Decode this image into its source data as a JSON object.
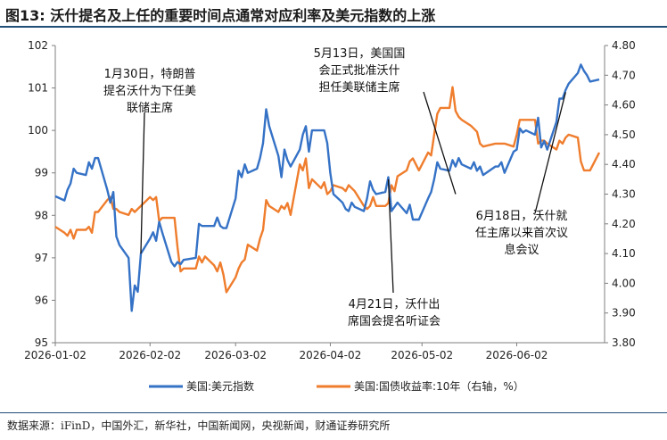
{
  "title": "图13: 沃什提名及上任的重要时间点通常对应利率及美元指数的上涨",
  "source": "数据来源：iFinD，中国外汇，新华社，中国新闻网，央视新闻，财通证券研究所",
  "colors": {
    "series1": "#3572c6",
    "series2": "#ef7d2d",
    "axis": "#7f7f7f"
  },
  "chart_data": {
    "type": "line",
    "x_ticks": [
      "2026-01-02",
      "2026-02-02",
      "2026-03-02",
      "2026-04-02",
      "2026-05-02",
      "2026-06-02"
    ],
    "y_left": {
      "min": 95,
      "max": 102,
      "ticks": [
        "95",
        "96",
        "97",
        "98",
        "99",
        "100",
        "101",
        "102"
      ]
    },
    "y_right": {
      "min": 3.8,
      "max": 4.8,
      "ticks": [
        "3.80",
        "3.90",
        "4.00",
        "4.10",
        "4.20",
        "4.30",
        "4.40",
        "4.50",
        "4.60",
        "4.70",
        "4.80"
      ]
    },
    "legend_position": "bottom",
    "series": [
      {
        "name": "美国:美元指数",
        "axis": "left",
        "points": [
          [
            "2026-01-02",
            98.45
          ],
          [
            "2026-01-05",
            98.35
          ],
          [
            "2026-01-06",
            98.6
          ],
          [
            "2026-01-07",
            98.75
          ],
          [
            "2026-01-08",
            99.1
          ],
          [
            "2026-01-09",
            99.0
          ],
          [
            "2026-01-12",
            98.95
          ],
          [
            "2026-01-13",
            99.25
          ],
          [
            "2026-01-14",
            99.1
          ],
          [
            "2026-01-15",
            99.35
          ],
          [
            "2026-01-16",
            99.35
          ],
          [
            "2026-01-19",
            98.6
          ],
          [
            "2026-01-20",
            98.3
          ],
          [
            "2026-01-21",
            98.55
          ],
          [
            "2026-01-22",
            97.5
          ],
          [
            "2026-01-23",
            97.3
          ],
          [
            "2026-01-26",
            97.0
          ],
          [
            "2026-01-27",
            95.75
          ],
          [
            "2026-01-28",
            96.35
          ],
          [
            "2026-01-29",
            96.2
          ],
          [
            "2026-01-30",
            97.1
          ],
          [
            "2026-02-02",
            97.45
          ],
          [
            "2026-02-03",
            97.6
          ],
          [
            "2026-02-04",
            97.4
          ],
          [
            "2026-02-05",
            97.85
          ],
          [
            "2026-02-06",
            97.6
          ],
          [
            "2026-02-09",
            96.9
          ],
          [
            "2026-02-10",
            96.8
          ],
          [
            "2026-02-11",
            96.9
          ],
          [
            "2026-02-12",
            96.85
          ],
          [
            "2026-02-13",
            96.95
          ],
          [
            "2026-02-17",
            97.0
          ],
          [
            "2026-02-18",
            97.8
          ],
          [
            "2026-02-19",
            97.75
          ],
          [
            "2026-02-20",
            97.75
          ],
          [
            "2026-02-23",
            97.75
          ],
          [
            "2026-02-24",
            97.95
          ],
          [
            "2026-02-25",
            97.75
          ],
          [
            "2026-02-26",
            97.7
          ],
          [
            "2026-02-27",
            97.7
          ],
          [
            "2026-03-02",
            98.4
          ],
          [
            "2026-03-03",
            99.05
          ],
          [
            "2026-03-04",
            98.9
          ],
          [
            "2026-03-05",
            99.2
          ],
          [
            "2026-03-06",
            99.0
          ],
          [
            "2026-03-09",
            99.1
          ],
          [
            "2026-03-10",
            99.35
          ],
          [
            "2026-03-11",
            99.7
          ],
          [
            "2026-03-12",
            100.5
          ],
          [
            "2026-03-13",
            100.1
          ],
          [
            "2026-03-16",
            99.4
          ],
          [
            "2026-03-17",
            98.9
          ],
          [
            "2026-03-18",
            99.55
          ],
          [
            "2026-03-19",
            99.3
          ],
          [
            "2026-03-20",
            99.15
          ],
          [
            "2026-03-23",
            99.55
          ],
          [
            "2026-03-24",
            99.9
          ],
          [
            "2026-03-25",
            100.1
          ],
          [
            "2026-03-26",
            99.5
          ],
          [
            "2026-03-27",
            100.0
          ],
          [
            "2026-03-30",
            100.0
          ],
          [
            "2026-03-31",
            100.0
          ],
          [
            "2026-04-01",
            99.7
          ],
          [
            "2026-04-02",
            99.0
          ],
          [
            "2026-04-03",
            98.5
          ],
          [
            "2026-04-06",
            98.3
          ],
          [
            "2026-04-07",
            98.15
          ],
          [
            "2026-04-08",
            98.1
          ],
          [
            "2026-04-09",
            98.3
          ],
          [
            "2026-04-10",
            98.2
          ],
          [
            "2026-04-13",
            98.1
          ],
          [
            "2026-04-14",
            98.4
          ],
          [
            "2026-04-15",
            98.8
          ],
          [
            "2026-04-16",
            98.6
          ],
          [
            "2026-04-17",
            98.5
          ],
          [
            "2026-04-20",
            98.55
          ],
          [
            "2026-04-21",
            98.9
          ],
          [
            "2026-04-22",
            98.1
          ],
          [
            "2026-04-23",
            98.2
          ],
          [
            "2026-04-24",
            98.3
          ],
          [
            "2026-04-27",
            98.05
          ],
          [
            "2026-04-28",
            98.25
          ],
          [
            "2026-04-29",
            97.9
          ],
          [
            "2026-04-30",
            97.9
          ],
          [
            "2026-05-01",
            97.9
          ],
          [
            "2026-05-04",
            98.4
          ],
          [
            "2026-05-05",
            98.55
          ],
          [
            "2026-05-06",
            98.85
          ],
          [
            "2026-05-07",
            99.25
          ],
          [
            "2026-05-08",
            99.1
          ],
          [
            "2026-05-11",
            99.05
          ],
          [
            "2026-05-12",
            99.3
          ],
          [
            "2026-05-13",
            99.15
          ],
          [
            "2026-05-14",
            99.35
          ],
          [
            "2026-05-15",
            99.2
          ],
          [
            "2026-05-18",
            99.1
          ],
          [
            "2026-05-19",
            99.25
          ],
          [
            "2026-05-20",
            99.05
          ],
          [
            "2026-05-21",
            99.15
          ],
          [
            "2026-05-22",
            98.95
          ],
          [
            "2026-05-26",
            99.15
          ],
          [
            "2026-05-27",
            99.15
          ],
          [
            "2026-05-28",
            99.25
          ],
          [
            "2026-05-29",
            99.0
          ],
          [
            "2026-06-01",
            99.5
          ],
          [
            "2026-06-02",
            99.55
          ],
          [
            "2026-06-03",
            100.05
          ],
          [
            "2026-06-04",
            99.95
          ],
          [
            "2026-06-05",
            100.0
          ],
          [
            "2026-06-08",
            99.9
          ],
          [
            "2026-06-09",
            100.3
          ],
          [
            "2026-06-10",
            99.6
          ],
          [
            "2026-06-11",
            99.75
          ],
          [
            "2026-06-12",
            99.55
          ],
          [
            "2026-06-15",
            100.2
          ],
          [
            "2026-06-16",
            100.75
          ],
          [
            "2026-06-17",
            100.75
          ],
          [
            "2026-06-18",
            100.95
          ],
          [
            "2026-06-19",
            101.1
          ],
          [
            "2026-06-22",
            101.35
          ],
          [
            "2026-06-23",
            101.55
          ],
          [
            "2026-06-24",
            101.4
          ],
          [
            "2026-06-25",
            101.3
          ],
          [
            "2026-06-26",
            101.15
          ],
          [
            "2026-06-29",
            101.2
          ]
        ]
      },
      {
        "name": "美国:国债收益率:10年（右轴，%）",
        "axis": "right",
        "points": [
          [
            "2026-01-02",
            4.19
          ],
          [
            "2026-01-05",
            4.17
          ],
          [
            "2026-01-06",
            4.16
          ],
          [
            "2026-01-07",
            4.18
          ],
          [
            "2026-01-08",
            4.15
          ],
          [
            "2026-01-09",
            4.18
          ],
          [
            "2026-01-12",
            4.18
          ],
          [
            "2026-01-13",
            4.19
          ],
          [
            "2026-01-14",
            4.17
          ],
          [
            "2026-01-15",
            4.24
          ],
          [
            "2026-01-16",
            4.24
          ],
          [
            "2026-01-19",
            4.28
          ],
          [
            "2026-01-20",
            4.29
          ],
          [
            "2026-01-21",
            4.25
          ],
          [
            "2026-01-22",
            4.25
          ],
          [
            "2026-01-23",
            4.24
          ],
          [
            "2026-01-26",
            4.23
          ],
          [
            "2026-01-27",
            4.25
          ],
          [
            "2026-01-28",
            4.24
          ],
          [
            "2026-01-29",
            4.25
          ],
          [
            "2026-01-30",
            4.26
          ],
          [
            "2026-02-02",
            4.29
          ],
          [
            "2026-02-03",
            4.28
          ],
          [
            "2026-02-04",
            4.29
          ],
          [
            "2026-02-05",
            4.21
          ],
          [
            "2026-02-06",
            4.22
          ],
          [
            "2026-02-09",
            4.22
          ],
          [
            "2026-02-10",
            4.22
          ],
          [
            "2026-02-11",
            4.12
          ],
          [
            "2026-02-12",
            4.04
          ],
          [
            "2026-02-13",
            4.05
          ],
          [
            "2026-02-17",
            4.05
          ],
          [
            "2026-02-18",
            4.09
          ],
          [
            "2026-02-19",
            4.07
          ],
          [
            "2026-02-20",
            4.09
          ],
          [
            "2026-02-23",
            4.06
          ],
          [
            "2026-02-24",
            4.04
          ],
          [
            "2026-02-25",
            4.07
          ],
          [
            "2026-02-26",
            4.03
          ],
          [
            "2026-02-27",
            3.97
          ],
          [
            "2026-03-02",
            4.02
          ],
          [
            "2026-03-03",
            4.05
          ],
          [
            "2026-03-04",
            4.07
          ],
          [
            "2026-03-05",
            4.08
          ],
          [
            "2026-03-06",
            4.13
          ],
          [
            "2026-03-09",
            4.11
          ],
          [
            "2026-03-10",
            4.15
          ],
          [
            "2026-03-11",
            4.18
          ],
          [
            "2026-03-12",
            4.28
          ],
          [
            "2026-03-13",
            4.26
          ],
          [
            "2026-03-16",
            4.24
          ],
          [
            "2026-03-17",
            4.26
          ],
          [
            "2026-03-18",
            4.25
          ],
          [
            "2026-03-19",
            4.27
          ],
          [
            "2026-03-20",
            4.23
          ],
          [
            "2026-03-23",
            4.4
          ],
          [
            "2026-03-24",
            4.38
          ],
          [
            "2026-03-25",
            4.42
          ],
          [
            "2026-03-26",
            4.32
          ],
          [
            "2026-03-27",
            4.35
          ],
          [
            "2026-03-30",
            4.32
          ],
          [
            "2026-03-31",
            4.34
          ],
          [
            "2026-04-01",
            4.3
          ],
          [
            "2026-04-02",
            4.31
          ],
          [
            "2026-04-03",
            4.33
          ],
          [
            "2026-04-06",
            4.32
          ],
          [
            "2026-04-07",
            4.31
          ],
          [
            "2026-04-08",
            4.33
          ],
          [
            "2026-04-09",
            4.32
          ],
          [
            "2026-04-10",
            4.31
          ],
          [
            "2026-04-13",
            4.26
          ],
          [
            "2026-04-14",
            4.25
          ],
          [
            "2026-04-15",
            4.26
          ],
          [
            "2026-04-16",
            4.29
          ],
          [
            "2026-04-17",
            4.26
          ],
          [
            "2026-04-20",
            4.26
          ],
          [
            "2026-04-21",
            4.27
          ],
          [
            "2026-04-22",
            4.33
          ],
          [
            "2026-04-23",
            4.31
          ],
          [
            "2026-04-24",
            4.36
          ],
          [
            "2026-04-27",
            4.38
          ],
          [
            "2026-04-28",
            4.41
          ],
          [
            "2026-04-29",
            4.42
          ],
          [
            "2026-04-30",
            4.4
          ],
          [
            "2026-05-01",
            4.38
          ],
          [
            "2026-05-04",
            4.44
          ],
          [
            "2026-05-05",
            4.43
          ],
          [
            "2026-05-06",
            4.5
          ],
          [
            "2026-05-07",
            4.57
          ],
          [
            "2026-05-08",
            4.59
          ],
          [
            "2026-05-11",
            4.59
          ],
          [
            "2026-05-12",
            4.66
          ],
          [
            "2026-05-13",
            4.58
          ],
          [
            "2026-05-14",
            4.56
          ],
          [
            "2026-05-15",
            4.55
          ],
          [
            "2026-05-18",
            4.53
          ],
          [
            "2026-05-19",
            4.52
          ],
          [
            "2026-05-20",
            4.51
          ],
          [
            "2026-05-21",
            4.47
          ],
          [
            "2026-05-22",
            4.46
          ],
          [
            "2026-05-26",
            4.47
          ],
          [
            "2026-05-27",
            4.47
          ],
          [
            "2026-05-28",
            4.47
          ],
          [
            "2026-05-29",
            4.47
          ],
          [
            "2026-06-01",
            4.46
          ],
          [
            "2026-06-02",
            4.5
          ],
          [
            "2026-06-03",
            4.55
          ],
          [
            "2026-06-04",
            4.55
          ],
          [
            "2026-06-05",
            4.55
          ],
          [
            "2026-06-08",
            4.55
          ],
          [
            "2026-06-09",
            4.47
          ],
          [
            "2026-06-10",
            4.48
          ],
          [
            "2026-06-11",
            4.48
          ],
          [
            "2026-06-12",
            4.47
          ],
          [
            "2026-06-15",
            4.45
          ],
          [
            "2026-06-16",
            4.48
          ],
          [
            "2026-06-17",
            4.47
          ],
          [
            "2026-06-18",
            4.49
          ],
          [
            "2026-06-19",
            4.5
          ],
          [
            "2026-06-22",
            4.49
          ],
          [
            "2026-06-23",
            4.41
          ],
          [
            "2026-06-24",
            4.38
          ],
          [
            "2026-06-25",
            4.38
          ],
          [
            "2026-06-26",
            4.38
          ],
          [
            "2026-06-29",
            4.44
          ]
        ]
      }
    ],
    "annotations": [
      {
        "lines": [
          "1月30日，特朗普",
          "提名沃什为下任美",
          "联储主席"
        ],
        "target": [
          "2026-01-30",
          97.1
        ]
      },
      {
        "lines": [
          "5月13日，美国国",
          "会正式批准沃什",
          "担任美联储主席"
        ],
        "target": [
          "2026-05-13",
          98.5
        ]
      },
      {
        "lines": [
          "4月21日，沃什出",
          "席国会提名听证会"
        ],
        "target": [
          "2026-04-21",
          98.85
        ]
      },
      {
        "lines": [
          "6月18日，沃什就",
          "任主席以来首次议",
          "息会议"
        ],
        "target": [
          "2026-06-18",
          100.9
        ]
      }
    ]
  }
}
